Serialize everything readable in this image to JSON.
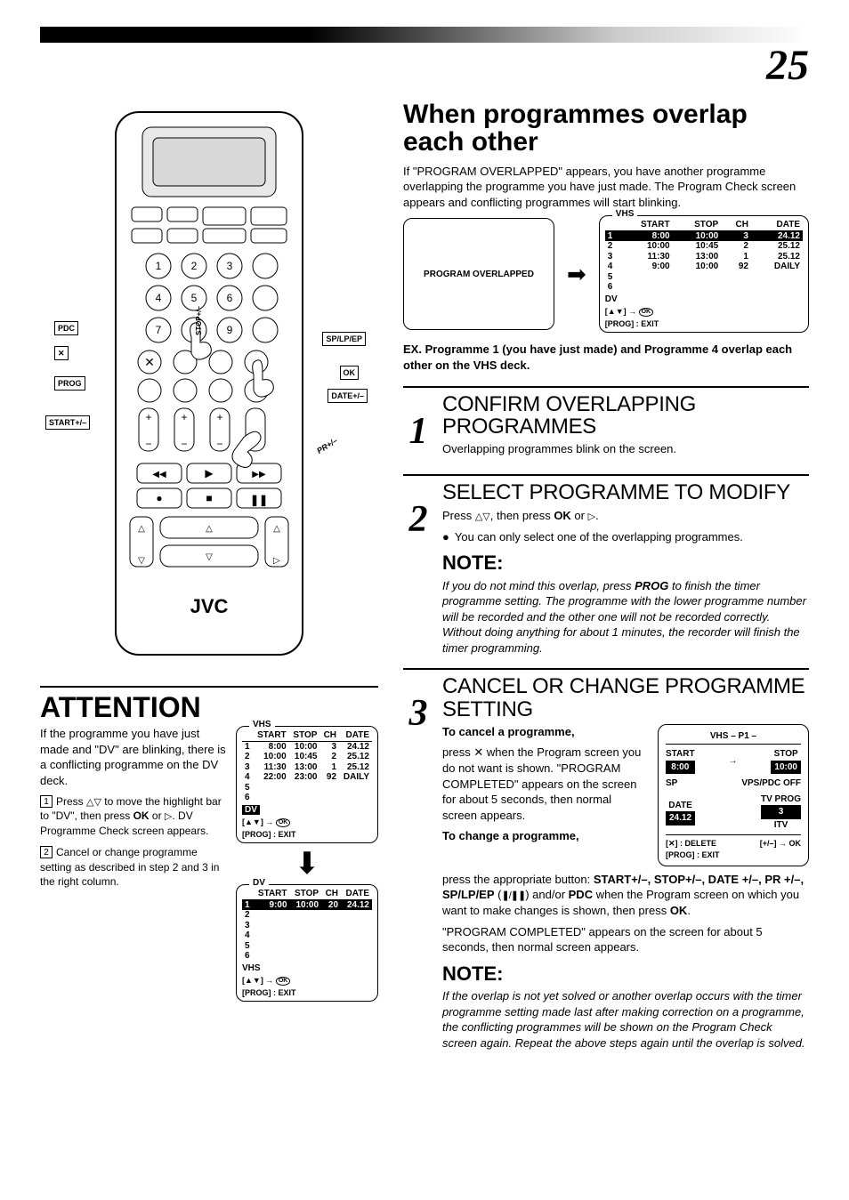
{
  "page_number": "25",
  "right": {
    "h1": "When programmes overlap each other",
    "intro": "If \"PROGRAM OVERLAPPED\" appears, you have another programme overlapping the programme you have just made. The Program Check screen appears and conflicting programmes will start blinking.",
    "msgbox": "PROGRAM OVERLAPPED",
    "vhs_overlap": {
      "title": "VHS",
      "headers": [
        "",
        "START",
        "STOP",
        "CH",
        "DATE"
      ],
      "rows": [
        {
          "idx": "1",
          "start": "8:00",
          "stop": "10:00",
          "ch": "3",
          "date": "24.12",
          "hl": true,
          "wavy": true
        },
        {
          "idx": "2",
          "start": "10:00",
          "stop": "10:45",
          "ch": "2",
          "date": "25.12",
          "wavy": true
        },
        {
          "idx": "3",
          "start": "11:30",
          "stop": "13:00",
          "ch": "1",
          "date": "25.12",
          "wavy": true
        },
        {
          "idx": "4",
          "start": "9:00",
          "stop": "10:00",
          "ch": "92",
          "date": "DAILY",
          "wavy": true
        },
        {
          "idx": "5"
        },
        {
          "idx": "6"
        }
      ],
      "dv": "DV",
      "foot1": "[▲▼] → OK",
      "foot2": "[PROG] : EXIT"
    },
    "ex_label": "EX.",
    "ex_text": "Programme 1 (you have just made) and Programme 4 overlap each other on the VHS deck.",
    "step1": {
      "num": "1",
      "h": "CONFIRM OVERLAPPING PROGRAMMES",
      "body": "Overlapping programmes blink on the screen."
    },
    "step2": {
      "num": "2",
      "h": "SELECT PROGRAMME TO MODIFY",
      "body_a": "Press ",
      "body_b": ", then press ",
      "body_c": " or ",
      "body_d": ".",
      "bullet": "You can only select one of the overlapping programmes.",
      "note_h": "NOTE:",
      "note_body": "If you do not mind this overlap, press PROG to finish the timer programme setting. The programme with the lower programme number will be recorded and the other one will not be recorded correctly. Without doing anything for about 1 minutes, the recorder will finish the timer programming."
    },
    "step3": {
      "num": "3",
      "h": "CANCEL OR CHANGE PROGRAMME SETTING",
      "cancel_lead": "To cancel a programme,",
      "cancel_body": "press ✕ when the Program screen you do not want is shown. \"PROGRAM COMPLETED\" appears on the screen for about 5 seconds, then normal screen appears.",
      "change_lead": "To change a programme,",
      "change_body_a": "press the appropriate button: ",
      "change_body_b": " and/or ",
      "change_body_c": " when the Program screen on which you want to make changes is shown, then press ",
      "change_body_d": ".",
      "change_tail": "\"PROGRAM COMPLETED\" appears on the screen for about 5 seconds, then normal screen appears.",
      "buttons": "START+/–, STOP+/–, DATE +/–, PR +/–, SP/LP/EP",
      "pdc": "PDC",
      "ok": "OK",
      "prog_osd": {
        "title": "VHS – P1 –",
        "start_l": "START",
        "start_v": "8:00",
        "stop_l": "STOP",
        "stop_v": "10:00",
        "sp": "SP",
        "vps": "VPS/PDC OFF",
        "date_l": "DATE",
        "date_v": "24.12",
        "tv_l": "TV PROG",
        "tv_v": "3",
        "tv_v2": "ITV",
        "foot_del": "[✕] : DELETE",
        "foot_ok": "[+/–] → OK",
        "foot_exit": "[PROG] : EXIT"
      },
      "note_h": "NOTE:",
      "note_body": "If the overlap is not yet solved or another overlap occurs with the timer programme setting made last after making correction on a programme, the conflicting programmes will be shown on the Program Check screen again. Repeat the above steps again until the overlap is solved."
    },
    "arrow": "➡"
  },
  "left": {
    "remote": {
      "brand": "JVC",
      "callouts": {
        "pdc": "PDC",
        "x": "✕",
        "prog": "PROG",
        "start": "START+/–",
        "splpep": "SP/LP/EP",
        "ok": "OK",
        "date": "DATE+/–",
        "stop": "STOP+/–",
        "pr": "PR+/–"
      }
    },
    "attention": {
      "h": "ATTENTION",
      "lead": "If the programme you have just made and \"DV\" are blinking, there is a conflicting programme on the DV deck.",
      "li1a": "Press ",
      "li1b": " to move the highlight bar to \"DV\", then press ",
      "li1c": " or ",
      "li1d": ". DV Programme Check screen appears.",
      "li2": "Cancel or change programme setting as described in step 2 and 3 in the right column.",
      "ok": "OK",
      "vhs_table": {
        "title": "VHS",
        "headers": [
          "",
          "START",
          "STOP",
          "CH",
          "DATE"
        ],
        "rows": [
          {
            "idx": "1",
            "start": "8:00",
            "stop": "10:00",
            "ch": "3",
            "date": "24.12",
            "wavy": true
          },
          {
            "idx": "2",
            "start": "10:00",
            "stop": "10:45",
            "ch": "2",
            "date": "25.12",
            "wavy": true
          },
          {
            "idx": "3",
            "start": "11:30",
            "stop": "13:00",
            "ch": "1",
            "date": "25.12"
          },
          {
            "idx": "4",
            "start": "22:00",
            "stop": "23:00",
            "ch": "92",
            "date": "DAILY"
          },
          {
            "idx": "5"
          },
          {
            "idx": "6"
          }
        ],
        "dv": "DV",
        "dv_hl": true,
        "foot1": "[▲▼] → OK",
        "foot2": "[PROG] : EXIT"
      },
      "dv_table": {
        "title": "DV",
        "headers": [
          "",
          "START",
          "STOP",
          "CH",
          "DATE"
        ],
        "rows": [
          {
            "idx": "1",
            "start": "9:00",
            "stop": "10:00",
            "ch": "20",
            "date": "24.12",
            "hl": true
          },
          {
            "idx": "2"
          },
          {
            "idx": "3"
          },
          {
            "idx": "4"
          },
          {
            "idx": "5"
          },
          {
            "idx": "6"
          }
        ],
        "vhs": "VHS",
        "foot1": "[▲▼] → OK",
        "foot2": "[PROG] : EXIT"
      }
    }
  },
  "style": {
    "band_gradient": [
      "#000000",
      "#ffffff"
    ],
    "page_no_font": "serif-italic",
    "colors": {
      "text": "#000000",
      "bg": "#ffffff",
      "inverse_bg": "#000000",
      "inverse_fg": "#ffffff"
    }
  }
}
